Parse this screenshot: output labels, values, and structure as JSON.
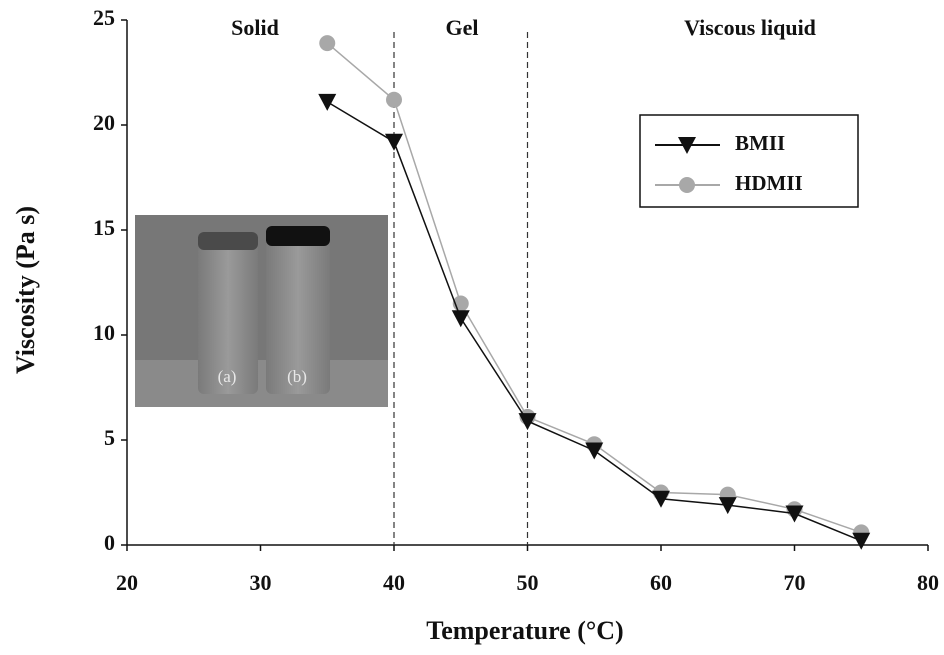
{
  "chart_data": {
    "type": "line",
    "x_label": "Temperature (°C)",
    "y_label": "Viscosity (Pa s)",
    "x": [
      35,
      40,
      45,
      50,
      55,
      60,
      65,
      70,
      75
    ],
    "series": [
      {
        "name": "BMII",
        "color": "#111111",
        "marker": "triangle-down",
        "values": [
          21.1,
          19.2,
          10.8,
          5.9,
          4.5,
          2.2,
          1.9,
          1.5,
          0.2
        ]
      },
      {
        "name": "HDMII",
        "color": "#a8a8a8",
        "marker": "circle",
        "values": [
          23.9,
          21.2,
          11.5,
          6.1,
          4.8,
          2.5,
          2.4,
          1.7,
          0.6
        ]
      }
    ],
    "xlim": [
      20,
      80
    ],
    "xticks": [
      20,
      30,
      40,
      50,
      60,
      70,
      80
    ],
    "ylim": [
      0,
      25
    ],
    "yticks": [
      0,
      5,
      10,
      15,
      20,
      25
    ],
    "vlines": [
      40,
      50
    ],
    "regions": [
      "Solid",
      "Gel",
      "Viscous liquid"
    ],
    "inset_labels": [
      "(a)",
      "(b)"
    ]
  }
}
